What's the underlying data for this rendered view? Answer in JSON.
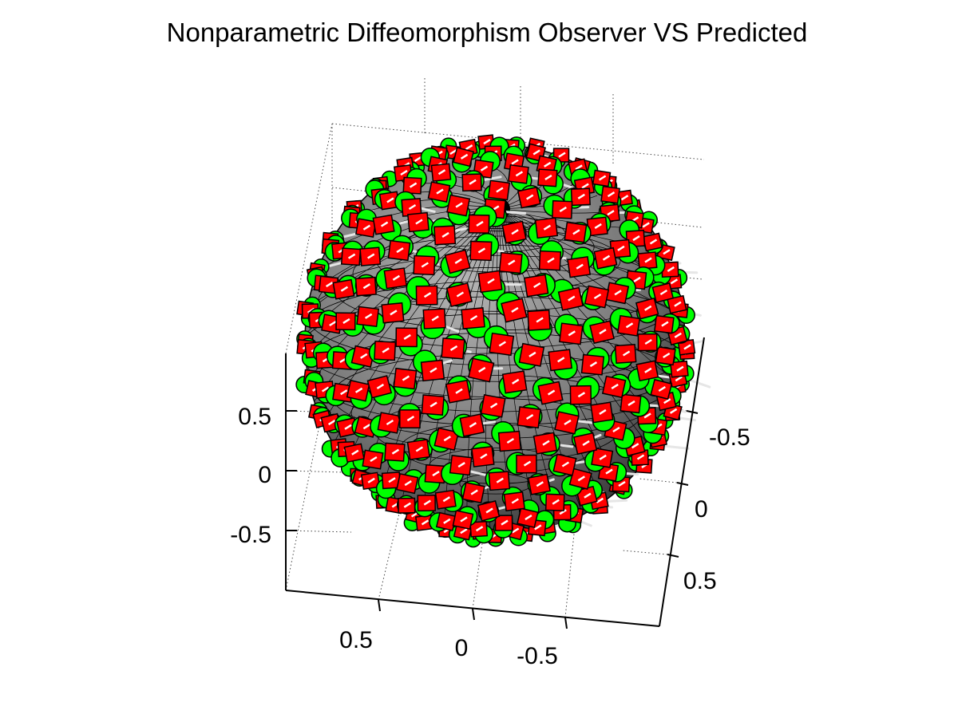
{
  "figure": {
    "title": "Nonparametric Diffeomorphism Observer VS Predicted"
  },
  "chart_data": {
    "type": "scatter",
    "title": "Nonparametric Diffeomorphism Observer VS Predicted",
    "projection": "3d",
    "surface": "unit-sphere-wireframe",
    "grid": true,
    "xlim": [
      -1,
      1
    ],
    "ylim": [
      -1,
      1
    ],
    "zlim": [
      -1,
      1
    ],
    "axes": {
      "x": {
        "ticks": [
          0.5,
          0,
          -0.5
        ],
        "tick_labels": [
          "0.5",
          "0",
          "-0.5"
        ]
      },
      "y": {
        "ticks": [
          -0.5,
          0,
          0.5
        ],
        "tick_labels": [
          "-0.5",
          "0",
          "0.5"
        ]
      },
      "z": {
        "ticks": [
          0.5,
          0,
          -0.5
        ],
        "tick_labels": [
          "0.5",
          "0",
          "-0.5"
        ]
      }
    },
    "series": [
      {
        "marker": "circle",
        "color": "#00ff00",
        "edge": "#000000"
      },
      {
        "marker": "square",
        "color": "#ff0000",
        "edge": "#000000"
      }
    ],
    "vector_color": "#e6e6e6",
    "sphere_face_color": "#7a7a7a",
    "sphere_edge_color": "#000000"
  }
}
